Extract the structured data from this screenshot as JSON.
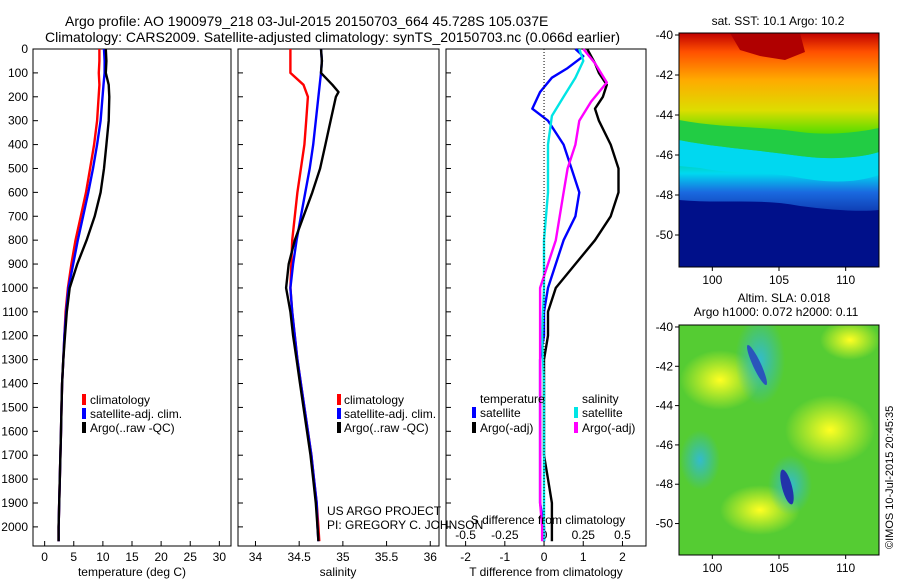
{
  "header": {
    "line1": "Argo profile: AO 1900979_218 03-Jul-2015 20150703_664 45.728S 105.037E",
    "line2": "Climatology: CARS2009. Satellite-adjusted climatology: synTS_20150703.nc (0.066d earlier)"
  },
  "credits": {
    "project": "US ARGO PROJECT",
    "pi": "PI: GREGORY C. JOHNSON",
    "imos": "©IMOS 10-Jul-2015 20:45:35"
  },
  "colors": {
    "climatology": "#ff0000",
    "satellite": "#0000ff",
    "argo": "#000000",
    "salinity_sat": "#00e5e5",
    "salinity_argo": "#ff00ff"
  },
  "chart_data": [
    {
      "type": "line",
      "name": "temperature-profile",
      "xlabel": "temperature (deg C)",
      "xlim": [
        -2,
        32
      ],
      "xticks": [
        0,
        5,
        10,
        15,
        20,
        25,
        30
      ],
      "ylim": [
        2080,
        0
      ],
      "yticks": [
        0,
        100,
        200,
        300,
        400,
        500,
        600,
        700,
        800,
        900,
        1000,
        1100,
        1200,
        1300,
        1400,
        1500,
        1600,
        1700,
        1800,
        1900,
        2000
      ],
      "legend": [
        "climatology",
        "satellite-adj. clim.",
        "Argo(..raw -QC)"
      ],
      "series": [
        {
          "name": "climatology",
          "color": "#ff0000",
          "points": [
            [
              9.4,
              0
            ],
            [
              9.4,
              50
            ],
            [
              9.3,
              100
            ],
            [
              9.4,
              150
            ],
            [
              9.0,
              300
            ],
            [
              8.5,
              400
            ],
            [
              7.8,
              500
            ],
            [
              7.1,
              600
            ],
            [
              6.2,
              700
            ],
            [
              5.3,
              800
            ],
            [
              4.6,
              900
            ],
            [
              4.0,
              1000
            ],
            [
              3.6,
              1100
            ],
            [
              3.4,
              1200
            ],
            [
              3.2,
              1300
            ],
            [
              3.0,
              1400
            ],
            [
              2.9,
              1500
            ],
            [
              2.8,
              1600
            ],
            [
              2.7,
              1700
            ],
            [
              2.6,
              1800
            ],
            [
              2.5,
              1900
            ],
            [
              2.4,
              2000
            ],
            [
              2.4,
              2060
            ]
          ]
        },
        {
          "name": "satellite-adj. clim.",
          "color": "#0000ff",
          "points": [
            [
              10.2,
              0
            ],
            [
              10.3,
              50
            ],
            [
              10.3,
              100
            ],
            [
              10.1,
              150
            ],
            [
              9.6,
              300
            ],
            [
              9.0,
              400
            ],
            [
              8.3,
              500
            ],
            [
              7.5,
              600
            ],
            [
              6.6,
              700
            ],
            [
              5.7,
              800
            ],
            [
              4.9,
              900
            ],
            [
              4.1,
              1000
            ],
            [
              3.7,
              1100
            ],
            [
              3.4,
              1200
            ],
            [
              3.2,
              1300
            ],
            [
              3.0,
              1400
            ],
            [
              2.9,
              1500
            ],
            [
              2.8,
              1600
            ],
            [
              2.7,
              1700
            ],
            [
              2.6,
              1800
            ],
            [
              2.5,
              1900
            ],
            [
              2.4,
              2000
            ],
            [
              2.4,
              2060
            ]
          ]
        },
        {
          "name": "Argo(..raw -QC)",
          "color": "#000000",
          "points": [
            [
              10.5,
              0
            ],
            [
              10.6,
              50
            ],
            [
              10.5,
              100
            ],
            [
              11.0,
              150
            ],
            [
              11.1,
              200
            ],
            [
              11.0,
              300
            ],
            [
              10.6,
              400
            ],
            [
              10.2,
              500
            ],
            [
              9.6,
              600
            ],
            [
              8.6,
              700
            ],
            [
              7.2,
              800
            ],
            [
              5.6,
              900
            ],
            [
              4.3,
              1000
            ],
            [
              3.8,
              1100
            ],
            [
              3.5,
              1200
            ],
            [
              3.2,
              1300
            ],
            [
              3.0,
              1400
            ],
            [
              2.9,
              1500
            ],
            [
              2.8,
              1600
            ],
            [
              2.7,
              1700
            ],
            [
              2.6,
              1800
            ],
            [
              2.5,
              1900
            ],
            [
              2.4,
              2000
            ],
            [
              2.4,
              2060
            ]
          ]
        }
      ]
    },
    {
      "type": "line",
      "name": "salinity-profile",
      "xlabel": "salinity",
      "xlim": [
        33.8,
        36.1
      ],
      "xticks": [
        34,
        34.5,
        35,
        35.5,
        36
      ],
      "ylim": [
        2080,
        0
      ],
      "legend": [
        "climatology",
        "satellite-adj. clim.",
        "Argo(..raw -QC)"
      ],
      "series": [
        {
          "name": "climatology",
          "color": "#ff0000",
          "points": [
            [
              34.4,
              0
            ],
            [
              34.4,
              50
            ],
            [
              34.4,
              100
            ],
            [
              34.55,
              150
            ],
            [
              34.6,
              200
            ],
            [
              34.58,
              300
            ],
            [
              34.56,
              400
            ],
            [
              34.52,
              500
            ],
            [
              34.48,
              600
            ],
            [
              34.45,
              700
            ],
            [
              34.42,
              800
            ],
            [
              34.41,
              900
            ],
            [
              34.4,
              1000
            ],
            [
              34.42,
              1100
            ],
            [
              34.45,
              1200
            ],
            [
              34.48,
              1300
            ],
            [
              34.52,
              1400
            ],
            [
              34.56,
              1500
            ],
            [
              34.6,
              1600
            ],
            [
              34.64,
              1700
            ],
            [
              34.67,
              1800
            ],
            [
              34.7,
              1900
            ],
            [
              34.72,
              2000
            ],
            [
              34.73,
              2060
            ]
          ]
        },
        {
          "name": "satellite-adj. clim.",
          "color": "#0000ff",
          "points": [
            [
              34.75,
              0
            ],
            [
              34.76,
              50
            ],
            [
              34.75,
              100
            ],
            [
              34.72,
              200
            ],
            [
              34.69,
              300
            ],
            [
              34.66,
              400
            ],
            [
              34.62,
              500
            ],
            [
              34.57,
              600
            ],
            [
              34.52,
              700
            ],
            [
              34.47,
              800
            ],
            [
              34.43,
              900
            ],
            [
              34.4,
              1000
            ],
            [
              34.42,
              1100
            ],
            [
              34.45,
              1200
            ],
            [
              34.48,
              1300
            ],
            [
              34.52,
              1400
            ],
            [
              34.56,
              1500
            ],
            [
              34.6,
              1600
            ],
            [
              34.64,
              1700
            ],
            [
              34.67,
              1800
            ],
            [
              34.7,
              1900
            ],
            [
              34.71,
              2000
            ],
            [
              34.72,
              2060
            ]
          ]
        },
        {
          "name": "Argo(..raw -QC)",
          "color": "#000000",
          "points": [
            [
              34.75,
              0
            ],
            [
              34.76,
              50
            ],
            [
              34.75,
              100
            ],
            [
              34.88,
              150
            ],
            [
              34.95,
              180
            ],
            [
              34.92,
              200
            ],
            [
              34.86,
              300
            ],
            [
              34.8,
              400
            ],
            [
              34.74,
              500
            ],
            [
              34.65,
              600
            ],
            [
              34.55,
              700
            ],
            [
              34.45,
              800
            ],
            [
              34.38,
              900
            ],
            [
              34.35,
              1000
            ],
            [
              34.4,
              1100
            ],
            [
              34.43,
              1200
            ],
            [
              34.47,
              1300
            ],
            [
              34.51,
              1400
            ],
            [
              34.55,
              1500
            ],
            [
              34.59,
              1600
            ],
            [
              34.63,
              1700
            ],
            [
              34.66,
              1800
            ],
            [
              34.69,
              1900
            ],
            [
              34.71,
              2000
            ],
            [
              34.72,
              2060
            ]
          ]
        }
      ]
    },
    {
      "type": "line",
      "name": "difference-profile",
      "xlabel": "T difference from climatology",
      "xlabel_top": "S difference from climatology",
      "xlim": [
        -2.5,
        2.6
      ],
      "xticks": [
        -2,
        -1,
        0,
        1,
        2
      ],
      "xticks_top": [
        "-0.5",
        "-0.25",
        "0",
        "0.25",
        "0.5"
      ],
      "ylim": [
        2080,
        0
      ],
      "legend_temperature": {
        "title": "temperature",
        "items": [
          "satellite",
          "Argo(-adj)"
        ]
      },
      "legend_salinity": {
        "title": "salinity",
        "items": [
          "satellite",
          "Argo(-adj)"
        ]
      },
      "series": [
        {
          "name": "temperature satellite",
          "color": "#0000ff",
          "points": [
            [
              0.8,
              0
            ],
            [
              1.0,
              30
            ],
            [
              0.6,
              80
            ],
            [
              0.2,
              120
            ],
            [
              -0.1,
              180
            ],
            [
              -0.3,
              250
            ],
            [
              0.1,
              300
            ],
            [
              0.5,
              400
            ],
            [
              0.7,
              500
            ],
            [
              0.9,
              600
            ],
            [
              0.8,
              700
            ],
            [
              0.5,
              800
            ],
            [
              0.3,
              900
            ],
            [
              0.1,
              1000
            ],
            [
              0.0,
              1100
            ],
            [
              0.0,
              1200
            ],
            [
              -0.1,
              1300
            ],
            [
              -0.1,
              1400
            ],
            [
              -0.1,
              1500
            ],
            [
              -0.1,
              1600
            ],
            [
              -0.1,
              1700
            ],
            [
              -0.1,
              1800
            ],
            [
              -0.1,
              1900
            ],
            [
              0.0,
              2000
            ],
            [
              0.0,
              2060
            ]
          ]
        },
        {
          "name": "temperature Argo(-adj)",
          "color": "#000000",
          "points": [
            [
              1.1,
              0
            ],
            [
              1.3,
              60
            ],
            [
              1.4,
              100
            ],
            [
              1.6,
              150
            ],
            [
              1.5,
              200
            ],
            [
              1.3,
              250
            ],
            [
              1.4,
              300
            ],
            [
              1.7,
              400
            ],
            [
              1.9,
              500
            ],
            [
              1.9,
              600
            ],
            [
              1.7,
              700
            ],
            [
              1.3,
              800
            ],
            [
              0.8,
              900
            ],
            [
              0.3,
              1000
            ],
            [
              0.1,
              1100
            ],
            [
              0.1,
              1200
            ],
            [
              0.0,
              1300
            ],
            [
              0.0,
              1400
            ],
            [
              0.0,
              1500
            ],
            [
              0.0,
              1600
            ],
            [
              0.0,
              1700
            ],
            [
              0.1,
              1800
            ],
            [
              0.2,
              1900
            ],
            [
              0.2,
              2000
            ],
            [
              0.2,
              2060
            ]
          ]
        },
        {
          "name": "salinity satellite",
          "color": "#00e5e5",
          "points": [
            [
              0.9,
              0
            ],
            [
              1.0,
              50
            ],
            [
              0.8,
              120
            ],
            [
              0.5,
              200
            ],
            [
              0.2,
              280
            ],
            [
              0.1,
              400
            ],
            [
              0.1,
              600
            ],
            [
              0.0,
              800
            ],
            [
              0.0,
              1000
            ],
            [
              -0.05,
              1200
            ],
            [
              0.0,
              1400
            ],
            [
              0.0,
              1600
            ],
            [
              0.0,
              1800
            ],
            [
              0.0,
              2000
            ],
            [
              0.0,
              2060
            ]
          ]
        },
        {
          "name": "salinity Argo(-adj)",
          "color": "#ff00ff",
          "points": [
            [
              1.0,
              0
            ],
            [
              1.3,
              60
            ],
            [
              1.6,
              140
            ],
            [
              1.2,
              220
            ],
            [
              0.9,
              300
            ],
            [
              0.8,
              400
            ],
            [
              0.6,
              500
            ],
            [
              0.5,
              600
            ],
            [
              0.4,
              700
            ],
            [
              0.3,
              800
            ],
            [
              0.1,
              900
            ],
            [
              -0.1,
              1000
            ],
            [
              -0.1,
              1200
            ],
            [
              -0.1,
              1400
            ],
            [
              -0.1,
              1600
            ],
            [
              -0.1,
              1800
            ],
            [
              -0.1,
              1900
            ],
            [
              -0.05,
              2000
            ],
            [
              -0.05,
              2060
            ]
          ]
        }
      ]
    },
    {
      "type": "heatmap",
      "name": "sst-map",
      "title": "sat. SST: 10.1  Argo: 10.2",
      "xticks": [
        100,
        105,
        110
      ],
      "yticks": [
        -40,
        -42,
        -44,
        -46,
        -48,
        -50
      ],
      "xlim": [
        97.5,
        112.5
      ],
      "ylim": [
        -51.6,
        -39.9
      ]
    },
    {
      "type": "heatmap",
      "name": "sla-map",
      "title_line1": "Altim. SLA: 0.018",
      "title_line2": "Argo h1000: 0.072 h2000: 0.11",
      "xticks": [
        100,
        105,
        110
      ],
      "yticks": [
        -40,
        -42,
        -44,
        -46,
        -48,
        -50
      ],
      "xlim": [
        97.5,
        112.5
      ],
      "ylim": [
        -51.6,
        -39.9
      ]
    }
  ]
}
